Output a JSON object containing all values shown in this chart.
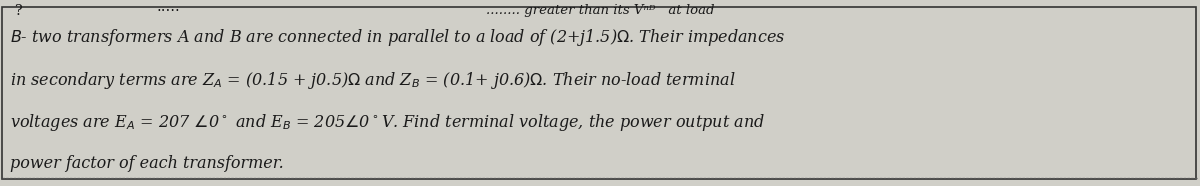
{
  "figsize": [
    12.0,
    1.86
  ],
  "dpi": 100,
  "bg_color": "#d0cfc8",
  "border_color": "#333333",
  "text_color": "#1a1a1a",
  "font_size": 11.5,
  "border_lw": 1.2,
  "superscript": "?",
  "top_partial": "....... greater than its V  at load",
  "line4": "power factor of each transformer."
}
